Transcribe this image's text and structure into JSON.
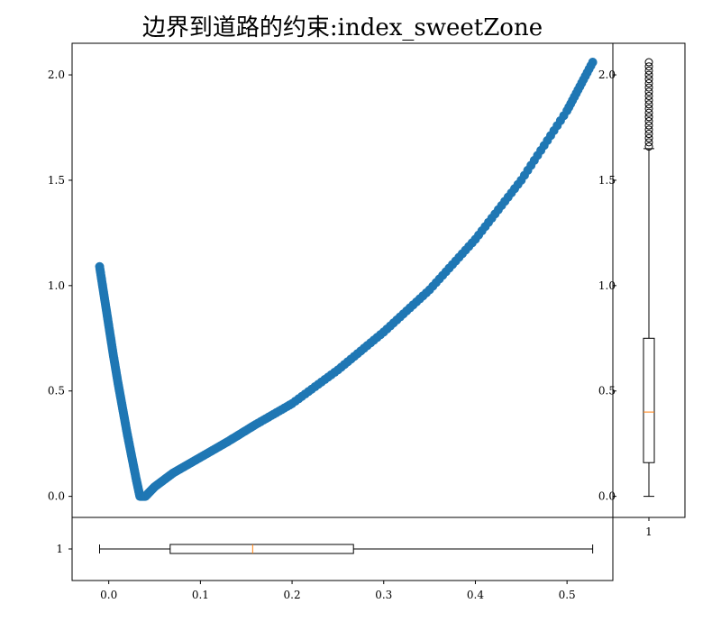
{
  "title": "边界到道路的约束:index_sweetZone",
  "colors": {
    "scatter": "#1f77b4",
    "box": "#000000",
    "median": "#ff7f0e",
    "frame": "#000000"
  },
  "chart_data": [
    {
      "type": "scatter",
      "role": "main",
      "title": "边界到道路的约束:index_sweetZone",
      "xlabel": "",
      "ylabel": "",
      "xlim": [
        -0.04,
        0.55
      ],
      "ylim": [
        -0.1,
        2.15
      ],
      "y_ticks": [
        0.0,
        0.5,
        1.0,
        1.5,
        2.0
      ],
      "y_tick_labels": [
        "0.0",
        "0.5",
        "1.0",
        "1.5",
        "2.0"
      ],
      "x_ticks_visible": false,
      "series": [
        {
          "points": [
            [
              -0.01,
              1.09
            ],
            [
              -0.005,
              0.95
            ],
            [
              0.0,
              0.81
            ],
            [
              0.005,
              0.67
            ],
            [
              0.01,
              0.54
            ],
            [
              0.015,
              0.42
            ],
            [
              0.02,
              0.3
            ],
            [
              0.025,
              0.19
            ],
            [
              0.03,
              0.08
            ],
            [
              0.034,
              0.0
            ],
            [
              0.04,
              0.0
            ],
            [
              0.05,
              0.045
            ],
            [
              0.07,
              0.11
            ],
            [
              0.1,
              0.185
            ],
            [
              0.13,
              0.26
            ],
            [
              0.16,
              0.34
            ],
            [
              0.2,
              0.44
            ],
            [
              0.25,
              0.6
            ],
            [
              0.3,
              0.78
            ],
            [
              0.35,
              0.98
            ],
            [
              0.4,
              1.22
            ],
            [
              0.45,
              1.5
            ],
            [
              0.5,
              1.83
            ],
            [
              0.528,
              2.06
            ]
          ]
        }
      ]
    },
    {
      "type": "box",
      "role": "right-marginal",
      "orientation": "vertical",
      "category_label": "1",
      "ylim": [
        -0.1,
        2.15
      ],
      "y_ticks": [
        0.0,
        0.5,
        1.0,
        1.5,
        2.0
      ],
      "y_tick_labels": [
        "0.0",
        "0.5",
        "1.0",
        "1.5",
        "2.0"
      ],
      "stats": {
        "whisker_low": 0.0,
        "q1": 0.16,
        "median": 0.4,
        "q3": 0.75,
        "whisker_high": 1.65
      },
      "outliers": [
        1.66,
        1.68,
        1.7,
        1.72,
        1.74,
        1.76,
        1.78,
        1.8,
        1.82,
        1.84,
        1.86,
        1.88,
        1.9,
        1.92,
        1.94,
        1.96,
        1.98,
        2.0,
        2.02,
        2.04,
        2.06
      ]
    },
    {
      "type": "box",
      "role": "bottom-marginal",
      "orientation": "horizontal",
      "category_label": "1",
      "xlim": [
        -0.04,
        0.55
      ],
      "x_ticks": [
        0.0,
        0.1,
        0.2,
        0.3,
        0.4,
        0.5
      ],
      "x_tick_labels": [
        "0.0",
        "0.1",
        "0.2",
        "0.3",
        "0.4",
        "0.5"
      ],
      "stats": {
        "whisker_low": -0.01,
        "q1": 0.067,
        "median": 0.157,
        "q3": 0.267,
        "whisker_high": 0.528
      },
      "outliers": []
    }
  ]
}
